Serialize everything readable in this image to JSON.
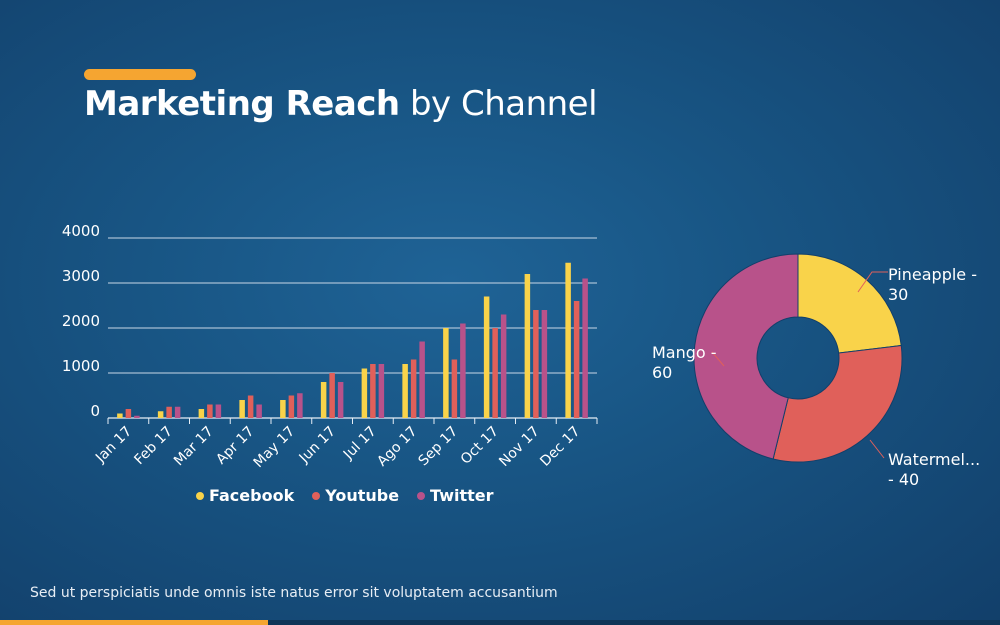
{
  "title": {
    "bold": "Marketing Reach",
    "rest": "by Channel"
  },
  "footer_text": "Sed ut perspiciatis unde omnis iste natus error sit voluptatem accusantium",
  "colors": {
    "accent": "#f5a531",
    "facebook": "#f9d34a",
    "youtube": "#e0605a",
    "twitter": "#b8528a"
  },
  "chart_data": [
    {
      "type": "bar",
      "categories": [
        "Jan 17",
        "Feb 17",
        "Mar 17",
        "Apr 17",
        "May 17",
        "Jun 17",
        "Jul 17",
        "Ago 17",
        "Sep 17",
        "Oct 17",
        "Nov 17",
        "Dec 17"
      ],
      "series": [
        {
          "name": "Facebook",
          "color": "#f9d34a",
          "values": [
            100,
            150,
            200,
            400,
            400,
            800,
            1100,
            1200,
            2000,
            2700,
            3200,
            3450
          ]
        },
        {
          "name": "Youtube",
          "color": "#e0605a",
          "values": [
            200,
            250,
            300,
            500,
            500,
            1000,
            1200,
            1300,
            1300,
            2000,
            2400,
            2600
          ]
        },
        {
          "name": "Twitter",
          "color": "#b8528a",
          "values": [
            50,
            250,
            300,
            300,
            550,
            800,
            1200,
            1700,
            2100,
            2300,
            2400,
            3100
          ]
        }
      ],
      "yticks": [
        "0",
        "1000",
        "2000",
        "3000",
        "4000"
      ],
      "ylim": [
        0,
        4000
      ],
      "grid": true,
      "legend": "bottom"
    },
    {
      "type": "pie",
      "donut": true,
      "slices": [
        {
          "label": "Pineapple - 30",
          "value": 30,
          "color": "#f9d34a"
        },
        {
          "label": "Watermel... - 40",
          "value": 40,
          "color": "#e0605a"
        },
        {
          "label": "Mango - 60",
          "value": 60,
          "color": "#b8528a"
        }
      ]
    }
  ]
}
